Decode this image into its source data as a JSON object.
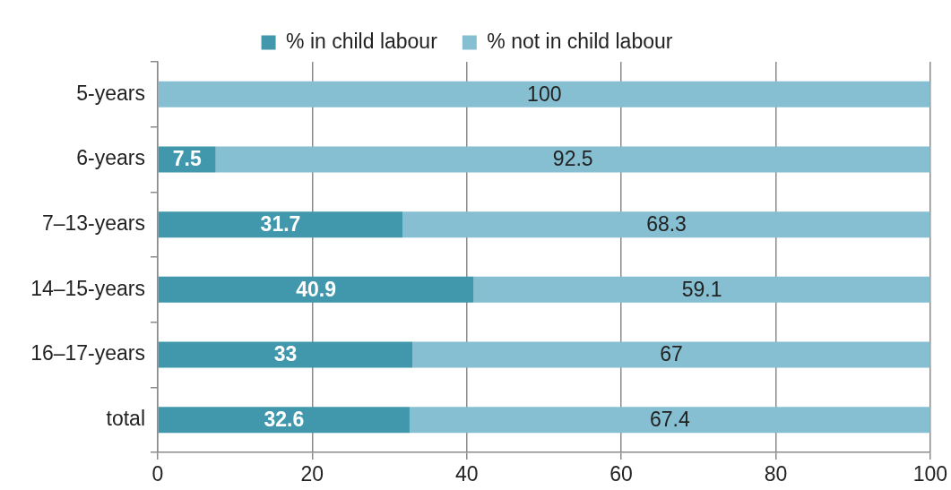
{
  "chart_data": {
    "type": "bar",
    "orientation": "horizontal",
    "stacked": true,
    "legend": "top",
    "grid": "x",
    "categories": [
      "5-years",
      "6-years",
      "7–13-years",
      "14–15-years",
      "16–17-years",
      "total"
    ],
    "series": [
      {
        "name": "% in child labour",
        "color": "#4197ab",
        "values": [
          0,
          7.5,
          31.7,
          40.9,
          33,
          32.6
        ],
        "value_labels": [
          null,
          "7.5",
          "31.7",
          "40.9",
          "33",
          "32.6"
        ]
      },
      {
        "name": "% not in child labour",
        "color": "#86bfd1",
        "values": [
          100,
          92.5,
          68.3,
          59.1,
          67,
          67.4
        ],
        "value_labels": [
          "100",
          "92.5",
          "68.3",
          "59.1",
          "67",
          "67.4"
        ]
      }
    ],
    "xlim": [
      0,
      100
    ],
    "xticks": [
      0,
      20,
      40,
      60,
      80,
      100
    ]
  }
}
